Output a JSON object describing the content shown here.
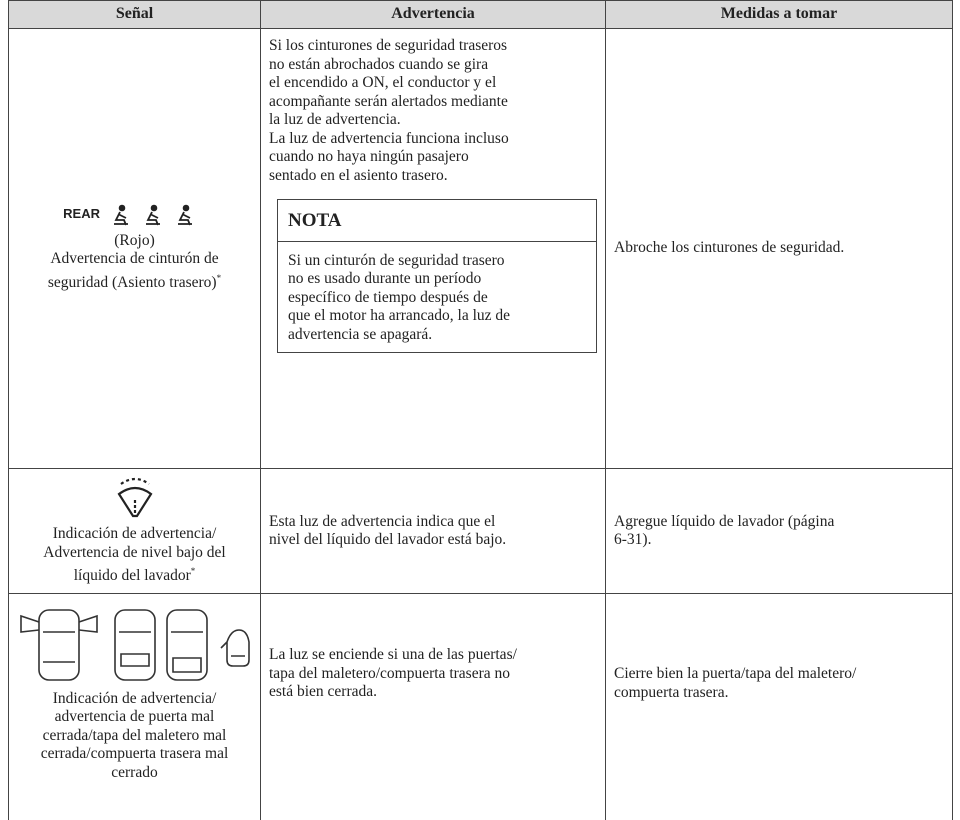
{
  "table": {
    "header": [
      "Señal",
      "Advertencia",
      "Medidas a tomar"
    ],
    "rows": [
      {
        "signal": {
          "icon_text": "REAR",
          "color": "(Rojo)",
          "lines": [
            "Advertencia de cinturón de",
            "seguridad (Asiento trasero)"
          ],
          "mark": "*"
        },
        "warning": {
          "lines": [
            "Si los cinturones de seguridad traseros",
            "no están abrochados cuando se gira",
            "el encendido a ON, el conductor y el",
            "acompañante serán alertados mediante",
            "la luz de advertencia.",
            "La luz de advertencia funciona incluso",
            "cuando no haya ningún pasajero",
            "sentado en el asiento trasero."
          ],
          "note": {
            "title": "NOTA",
            "lines": [
              "Si un cinturón de seguridad trasero",
              "no es usado durante un período",
              "específico de tiempo después de",
              "que el motor ha arrancado, la luz de",
              "advertencia se apagará."
            ]
          }
        },
        "action": {
          "lines": [
            "Abroche los cinturones de seguridad."
          ]
        }
      },
      {
        "signal": {
          "lines": [
            "Indicación de advertencia/",
            "Advertencia de nivel bajo del",
            "líquido del lavador"
          ],
          "mark": "*"
        },
        "warning": {
          "lines": [
            "Esta luz de advertencia indica que el",
            "nivel del líquido del lavador está bajo."
          ]
        },
        "action": {
          "lines": [
            "Agregue líquido de lavador (página",
            "6-31)."
          ]
        }
      },
      {
        "signal": {
          "lines": [
            "Indicación de advertencia/",
            "advertencia de puerta mal",
            "cerrada/tapa del maletero mal",
            "cerrada/compuerta trasera mal",
            "cerrado"
          ]
        },
        "warning": {
          "lines": [
            "La luz se enciende si una de las puertas/",
            "tapa del maletero/compuerta trasera no",
            "está bien cerrada."
          ]
        },
        "action": {
          "lines": [
            "Cierre bien la puerta/tapa del maletero/",
            "compuerta trasera."
          ]
        }
      }
    ]
  }
}
